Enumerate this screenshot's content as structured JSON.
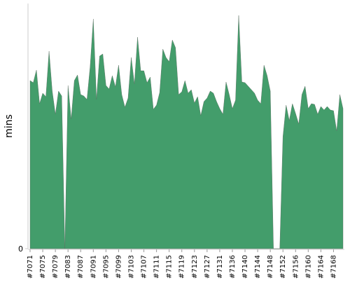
{
  "chart_data": {
    "type": "area",
    "y_label": "mins",
    "categories": [
      "#7071",
      null,
      null,
      null,
      "#7075",
      null,
      null,
      null,
      "#7079",
      null,
      null,
      null,
      "#7083",
      null,
      null,
      null,
      "#7087",
      null,
      null,
      null,
      "#7091",
      null,
      null,
      null,
      "#7095",
      null,
      null,
      null,
      "#7099",
      null,
      null,
      null,
      "#7103",
      null,
      null,
      null,
      "#7107",
      null,
      null,
      null,
      "#7111",
      null,
      null,
      null,
      "#7115",
      null,
      null,
      null,
      "#7119",
      null,
      null,
      null,
      "#7123",
      null,
      null,
      null,
      "#7127",
      null,
      null,
      null,
      "#7131",
      null,
      null,
      null,
      "#7136",
      null,
      null,
      null,
      "#7140",
      null,
      null,
      null,
      "#7144",
      null,
      null,
      null,
      "#7148",
      null,
      null,
      null,
      "#7152",
      null,
      null,
      null,
      "#7156",
      null,
      null,
      null,
      "#7160",
      null,
      null,
      null,
      "#7164",
      null,
      null,
      null,
      "#7168",
      null,
      null,
      null
    ],
    "values": [
      24.0,
      23.7,
      25.5,
      20.7,
      22.2,
      21.7,
      28.2,
      22.5,
      19.2,
      22.5,
      21.8,
      0,
      23.3,
      18.5,
      24.0,
      24.8,
      22.0,
      21.8,
      21.3,
      26.0,
      32.8,
      21.3,
      27.5,
      27.8,
      23.3,
      22.8,
      24.7,
      23.1,
      26.2,
      22.0,
      20.2,
      21.5,
      27.3,
      23.5,
      30.2,
      25.4,
      25.4,
      23.7,
      24.5,
      19.9,
      20.5,
      22.3,
      28.5,
      27.3,
      26.7,
      29.8,
      28.7,
      22.0,
      22.4,
      24.0,
      22.2,
      22.7,
      20.8,
      21.7,
      19.0,
      21.0,
      21.5,
      22.5,
      22.2,
      21.0,
      20.0,
      19.2,
      23.8,
      22.0,
      20.0,
      21.2,
      33.3,
      23.8,
      23.7,
      23.2,
      22.7,
      22.2,
      21.2,
      20.7,
      26.2,
      24.7,
      22.5,
      0,
      0,
      0,
      16.0,
      20.5,
      18.3,
      20.7,
      19.3,
      17.8,
      22.0,
      23.2,
      20.0,
      20.7,
      20.6,
      19.2,
      20.3,
      19.8,
      20.3,
      19.8,
      19.7,
      16.8,
      22.0,
      20.0
    ],
    "color": "#439d6b",
    "ylim": [
      0,
      35
    ],
    "yticks": [
      0
    ]
  }
}
